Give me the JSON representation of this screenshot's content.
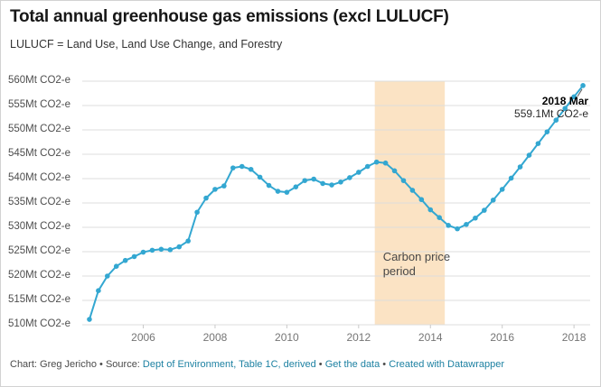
{
  "header": {
    "title": "Total annual greenhouse gas emissions (excl LULUCF)",
    "subtitle": "LULUCF = Land Use, Land Use Change, and Forestry"
  },
  "chart_data": {
    "type": "line",
    "title": "Total annual greenhouse gas emissions (excl LULUCF)",
    "subtitle": "LULUCF = Land Use, Land Use Change, and Forestry",
    "unit": "Mt CO2-e",
    "xlim": [
      2004.3,
      2018.45
    ],
    "ylim": [
      510,
      560
    ],
    "grid": "horizontal",
    "line_color": "#33a7d1",
    "x": [
      2004.5,
      2004.75,
      2005,
      2005.25,
      2005.5,
      2005.75,
      2006,
      2006.25,
      2006.5,
      2006.75,
      2007,
      2007.25,
      2007.5,
      2007.75,
      2008,
      2008.25,
      2008.5,
      2008.75,
      2009,
      2009.25,
      2009.5,
      2009.75,
      2010,
      2010.25,
      2010.5,
      2010.75,
      2011,
      2011.25,
      2011.5,
      2011.75,
      2012,
      2012.25,
      2012.5,
      2012.75,
      2013,
      2013.25,
      2013.5,
      2013.75,
      2014,
      2014.25,
      2014.5,
      2014.75,
      2015,
      2015.25,
      2015.5,
      2015.75,
      2016,
      2016.25,
      2016.5,
      2016.75,
      2017,
      2017.25,
      2017.5,
      2017.75,
      2018,
      2018.25
    ],
    "values": [
      511.1,
      517,
      520,
      522,
      523.2,
      524,
      524.9,
      525.3,
      525.5,
      525.4,
      526,
      527.2,
      533.1,
      536,
      537.8,
      538.5,
      542.2,
      542.5,
      541.9,
      540.3,
      538.6,
      537.4,
      537.2,
      538.3,
      539.6,
      539.9,
      539,
      538.7,
      539.3,
      540.2,
      541.3,
      542.5,
      543.4,
      543.2,
      541.6,
      539.6,
      537.6,
      535.7,
      533.6,
      532,
      530.4,
      529.7,
      530.6,
      531.9,
      533.5,
      535.6,
      537.8,
      540.1,
      542.4,
      544.8,
      547.2,
      549.6,
      552,
      554.4,
      556.8,
      559.1
    ],
    "y_ticks": [
      {
        "value": 560,
        "label": "560Mt CO2-e"
      },
      {
        "value": 555,
        "label": "555Mt CO2-e"
      },
      {
        "value": 550,
        "label": "550Mt CO2-e"
      },
      {
        "value": 545,
        "label": "545Mt CO2-e"
      },
      {
        "value": 540,
        "label": "540Mt CO2-e"
      },
      {
        "value": 535,
        "label": "535Mt CO2-e"
      },
      {
        "value": 530,
        "label": "530Mt CO2-e"
      },
      {
        "value": 525,
        "label": "525Mt CO2-e"
      },
      {
        "value": 520,
        "label": "520Mt CO2-e"
      },
      {
        "value": 515,
        "label": "515Mt CO2-e"
      },
      {
        "value": 510,
        "label": "510Mt CO2-e"
      }
    ],
    "x_ticks": [
      {
        "value": 2006,
        "label": "2006"
      },
      {
        "value": 2008,
        "label": "2008"
      },
      {
        "value": 2010,
        "label": "2010"
      },
      {
        "value": 2012,
        "label": "2012"
      },
      {
        "value": 2014,
        "label": "2014"
      },
      {
        "value": 2016,
        "label": "2016"
      },
      {
        "value": 2018,
        "label": "2018"
      }
    ],
    "band": {
      "x0": 2012.45,
      "x1": 2014.4,
      "color": "#fbe3c4",
      "label": "Carbon price period"
    },
    "annotation": {
      "title": "2018 Mar",
      "value": "559.1Mt CO2-e",
      "x": 2018.25,
      "y": 559.1
    }
  },
  "footer": {
    "link_color": "#1d81a2",
    "parts": [
      {
        "text": "Chart: Greg Jericho",
        "link": false
      },
      {
        "text": " • ",
        "link": false
      },
      {
        "text": "Source: ",
        "link": false
      },
      {
        "text": "Dept of Environment, Table 1C, derived",
        "link": true
      },
      {
        "text": " • ",
        "link": false
      },
      {
        "text": "Get the data",
        "link": true
      },
      {
        "text": " • ",
        "link": false
      },
      {
        "text": "Created with Datawrapper",
        "link": true
      }
    ]
  }
}
